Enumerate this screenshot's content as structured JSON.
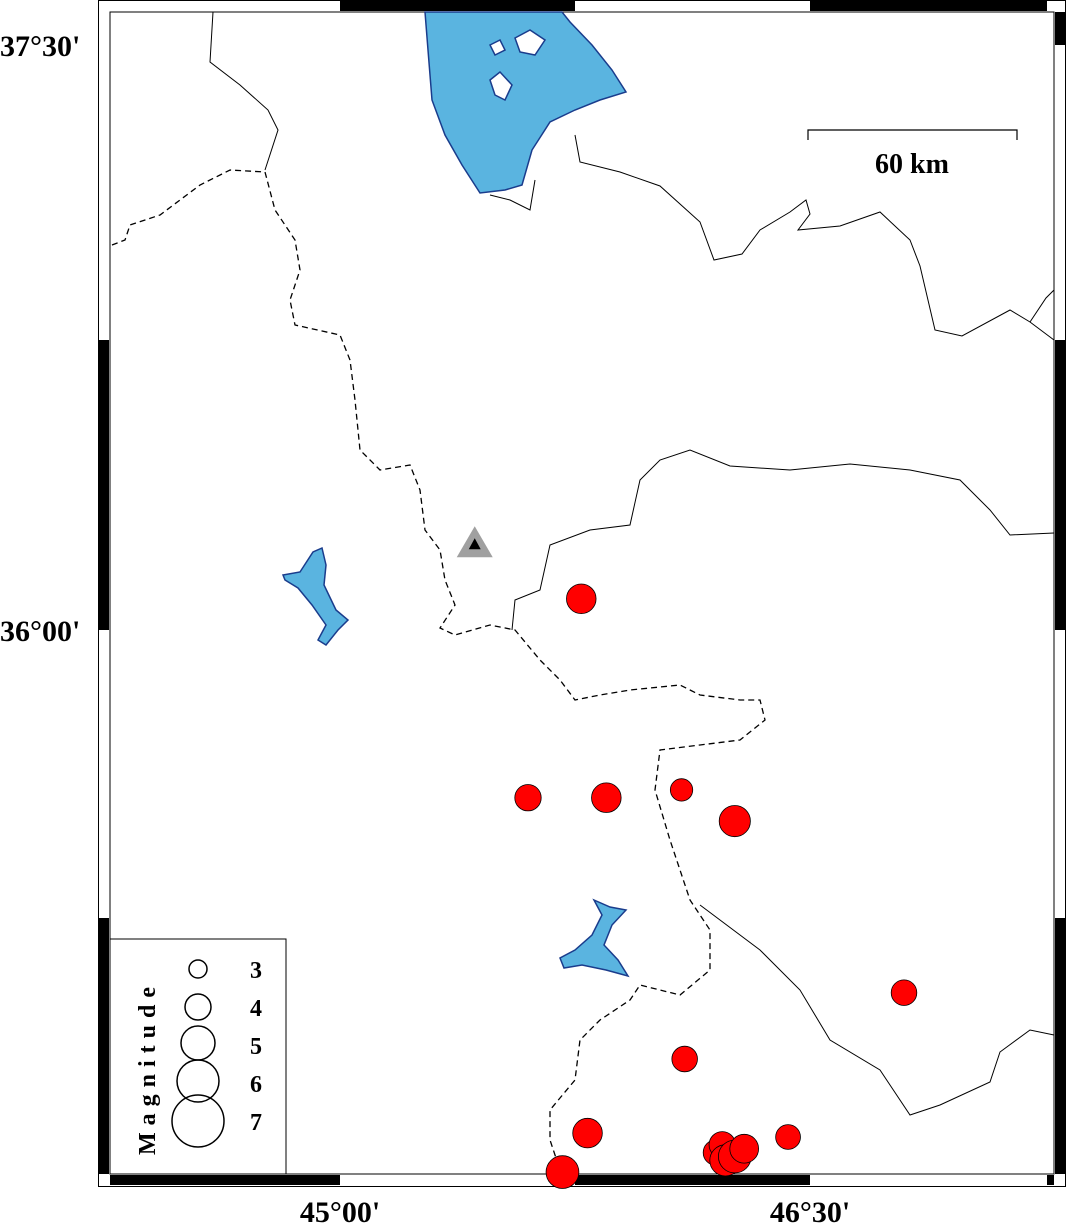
{
  "map": {
    "frame_labels": {
      "lat_top": "37°30'",
      "lat_mid": "36°00'",
      "lon_left": "45°00'",
      "lon_right": "46°30'"
    },
    "extent": {
      "lon_min": 44.24,
      "lon_max": 47.25,
      "lat_min": 34.61,
      "lat_max": 37.59
    },
    "scale_bar": {
      "label": "60 km"
    },
    "colors": {
      "water": "#5ab4e0",
      "event": "#ff0000",
      "station": "#000000",
      "station_halo": "#a0a0a0"
    },
    "station": {
      "lon": 45.43,
      "lat": 36.22,
      "icon": "triangle-icon"
    },
    "legend": {
      "title": "Magnitude",
      "magnitudes": [
        "3",
        "4",
        "5",
        "6",
        "7"
      ]
    },
    "events": [
      {
        "lon": 45.77,
        "lat": 36.08,
        "mag": 4.2
      },
      {
        "lon": 45.6,
        "lat": 35.57,
        "mag": 3.8
      },
      {
        "lon": 45.85,
        "lat": 35.57,
        "mag": 4.2
      },
      {
        "lon": 46.09,
        "lat": 35.59,
        "mag": 3.3
      },
      {
        "lon": 46.26,
        "lat": 35.51,
        "mag": 4.4
      },
      {
        "lon": 46.8,
        "lat": 35.07,
        "mag": 3.7
      },
      {
        "lon": 46.1,
        "lat": 34.9,
        "mag": 3.7
      },
      {
        "lon": 45.79,
        "lat": 34.71,
        "mag": 4.2
      },
      {
        "lon": 46.43,
        "lat": 34.7,
        "mag": 3.6
      },
      {
        "lon": 45.71,
        "lat": 34.61,
        "mag": 4.6
      },
      {
        "lon": 46.2,
        "lat": 34.66,
        "mag": 3.7
      },
      {
        "lon": 46.22,
        "lat": 34.68,
        "mag": 3.8
      },
      {
        "lon": 46.23,
        "lat": 34.64,
        "mag": 4.4
      },
      {
        "lon": 46.26,
        "lat": 34.65,
        "mag": 4.6
      },
      {
        "lon": 46.29,
        "lat": 34.67,
        "mag": 4.1
      }
    ]
  }
}
